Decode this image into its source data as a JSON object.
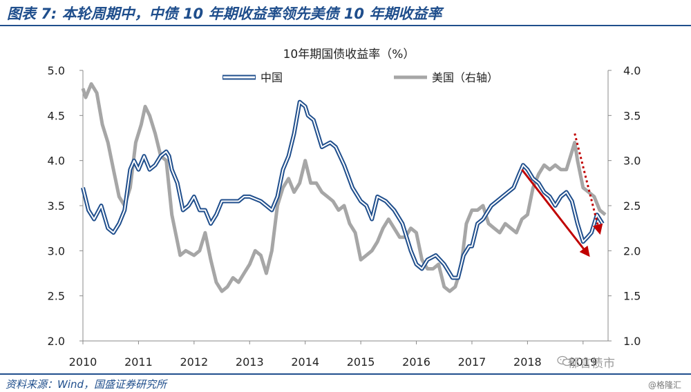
{
  "figure_title": "图表 7:  本轮周期中，中债 10 年期收益率领先美债 10 年期收益率",
  "source_note": "资料来源：Wind，国盛证券研究所",
  "watermark": {
    "main": "郁言债市",
    "sub": "@格隆汇",
    "icon": "wechat-icon"
  },
  "colors": {
    "china": "#1f4e8c",
    "us": "#a6a6a6",
    "arrow": "#c00000",
    "frame": "#1f4e8c"
  },
  "chart_data": {
    "type": "line",
    "title": "10年期国债收益率（%）",
    "x_ticks": [
      "2010",
      "2011",
      "2012",
      "2013",
      "2014",
      "2015",
      "2016",
      "2017",
      "2018",
      "2019"
    ],
    "x_range": [
      2010.0,
      2019.45
    ],
    "y_left": {
      "range": [
        2.0,
        5.0
      ],
      "ticks": [
        "2.0",
        "2.5",
        "3.0",
        "3.5",
        "4.0",
        "4.5",
        "5.0"
      ]
    },
    "y_right": {
      "range": [
        1.0,
        4.0
      ],
      "ticks": [
        "1.0",
        "1.5",
        "2.0",
        "2.5",
        "3.0",
        "3.5",
        "4.0"
      ]
    },
    "legend": {
      "placement": "top"
    },
    "series": [
      {
        "name": "中国",
        "axis": "left",
        "style": "double-line",
        "x": [
          2010.0,
          2010.1,
          2010.2,
          2010.33,
          2010.45,
          2010.55,
          2010.65,
          2010.75,
          2010.85,
          2010.92,
          2011.0,
          2011.1,
          2011.2,
          2011.3,
          2011.4,
          2011.5,
          2011.55,
          2011.6,
          2011.7,
          2011.8,
          2011.9,
          2012.0,
          2012.1,
          2012.2,
          2012.3,
          2012.4,
          2012.5,
          2012.6,
          2012.7,
          2012.8,
          2012.9,
          2013.0,
          2013.2,
          2013.4,
          2013.5,
          2013.6,
          2013.7,
          2013.8,
          2013.9,
          2014.0,
          2014.05,
          2014.15,
          2014.3,
          2014.45,
          2014.55,
          2014.7,
          2014.85,
          2014.95,
          2015.0,
          2015.1,
          2015.2,
          2015.3,
          2015.45,
          2015.6,
          2015.75,
          2015.9,
          2016.0,
          2016.1,
          2016.2,
          2016.35,
          2016.5,
          2016.65,
          2016.75,
          2016.85,
          2016.95,
          2017.0,
          2017.1,
          2017.2,
          2017.35,
          2017.45,
          2017.55,
          2017.65,
          2017.75,
          2017.85,
          2017.92,
          2018.0,
          2018.1,
          2018.2,
          2018.3,
          2018.4,
          2018.5,
          2018.6,
          2018.7,
          2018.8,
          2018.9,
          2019.0,
          2019.08,
          2019.15,
          2019.25,
          2019.35
        ],
        "y": [
          3.7,
          3.45,
          3.35,
          3.5,
          3.25,
          3.2,
          3.3,
          3.45,
          3.9,
          4.0,
          3.9,
          4.05,
          3.9,
          3.95,
          4.05,
          4.1,
          4.05,
          3.9,
          3.75,
          3.45,
          3.5,
          3.6,
          3.45,
          3.45,
          3.3,
          3.4,
          3.55,
          3.55,
          3.55,
          3.55,
          3.6,
          3.6,
          3.55,
          3.45,
          3.6,
          3.9,
          4.05,
          4.3,
          4.65,
          4.6,
          4.5,
          4.45,
          4.15,
          4.2,
          4.15,
          3.95,
          3.7,
          3.6,
          3.55,
          3.5,
          3.35,
          3.6,
          3.55,
          3.45,
          3.3,
          3.0,
          2.85,
          2.8,
          2.9,
          2.95,
          2.85,
          2.7,
          2.7,
          2.95,
          3.05,
          3.05,
          3.3,
          3.35,
          3.5,
          3.55,
          3.6,
          3.65,
          3.7,
          3.85,
          3.95,
          3.9,
          3.8,
          3.75,
          3.65,
          3.6,
          3.5,
          3.6,
          3.65,
          3.55,
          3.3,
          3.1,
          3.15,
          3.2,
          3.4,
          3.3
        ]
      },
      {
        "name": "美国（右轴）",
        "axis": "right",
        "style": "single-line",
        "x": [
          2010.0,
          2010.05,
          2010.15,
          2010.25,
          2010.35,
          2010.45,
          2010.55,
          2010.65,
          2010.75,
          2010.85,
          2010.95,
          2011.05,
          2011.12,
          2011.2,
          2011.3,
          2011.4,
          2011.5,
          2011.6,
          2011.7,
          2011.75,
          2011.85,
          2012.0,
          2012.1,
          2012.2,
          2012.3,
          2012.4,
          2012.5,
          2012.6,
          2012.7,
          2012.8,
          2012.9,
          2013.0,
          2013.1,
          2013.2,
          2013.3,
          2013.4,
          2013.5,
          2013.6,
          2013.7,
          2013.8,
          2013.9,
          2014.0,
          2014.1,
          2014.2,
          2014.3,
          2014.4,
          2014.5,
          2014.6,
          2014.7,
          2014.8,
          2014.9,
          2015.0,
          2015.1,
          2015.2,
          2015.3,
          2015.4,
          2015.5,
          2015.6,
          2015.7,
          2015.8,
          2015.9,
          2016.0,
          2016.1,
          2016.2,
          2016.3,
          2016.4,
          2016.5,
          2016.6,
          2016.7,
          2016.8,
          2016.9,
          2017.0,
          2017.1,
          2017.2,
          2017.3,
          2017.4,
          2017.5,
          2017.6,
          2017.7,
          2017.8,
          2017.9,
          2018.0,
          2018.1,
          2018.2,
          2018.3,
          2018.4,
          2018.5,
          2018.6,
          2018.7,
          2018.8,
          2018.85,
          2018.9,
          2019.0,
          2019.1,
          2019.2,
          2019.3,
          2019.4
        ],
        "y": [
          3.8,
          3.7,
          3.85,
          3.75,
          3.4,
          3.2,
          2.9,
          2.6,
          2.5,
          2.7,
          3.2,
          3.4,
          3.6,
          3.5,
          3.3,
          3.05,
          3.0,
          2.4,
          2.1,
          1.95,
          2.0,
          1.95,
          2.0,
          2.2,
          1.9,
          1.65,
          1.55,
          1.6,
          1.7,
          1.65,
          1.75,
          1.85,
          2.0,
          1.95,
          1.75,
          2.0,
          2.5,
          2.7,
          2.8,
          2.65,
          2.75,
          3.0,
          2.75,
          2.75,
          2.65,
          2.6,
          2.55,
          2.45,
          2.5,
          2.3,
          2.2,
          1.9,
          1.95,
          2.0,
          2.1,
          2.25,
          2.35,
          2.25,
          2.15,
          2.15,
          2.25,
          2.2,
          1.9,
          1.8,
          1.8,
          1.85,
          1.6,
          1.55,
          1.6,
          1.8,
          2.3,
          2.45,
          2.45,
          2.5,
          2.3,
          2.25,
          2.2,
          2.3,
          2.25,
          2.2,
          2.35,
          2.4,
          2.7,
          2.85,
          2.95,
          2.9,
          2.95,
          2.9,
          2.9,
          3.1,
          3.2,
          3.0,
          2.7,
          2.65,
          2.6,
          2.45,
          2.4
        ]
      }
    ],
    "annotations": [
      {
        "type": "arrow",
        "style": "solid",
        "from": [
          2017.9,
          3.9
        ],
        "to": [
          2019.1,
          2.95
        ],
        "axis": "left"
      },
      {
        "type": "arrow",
        "style": "dotted",
        "from": [
          2018.85,
          3.3
        ],
        "to": [
          2019.3,
          2.2
        ],
        "axis": "right"
      }
    ]
  }
}
